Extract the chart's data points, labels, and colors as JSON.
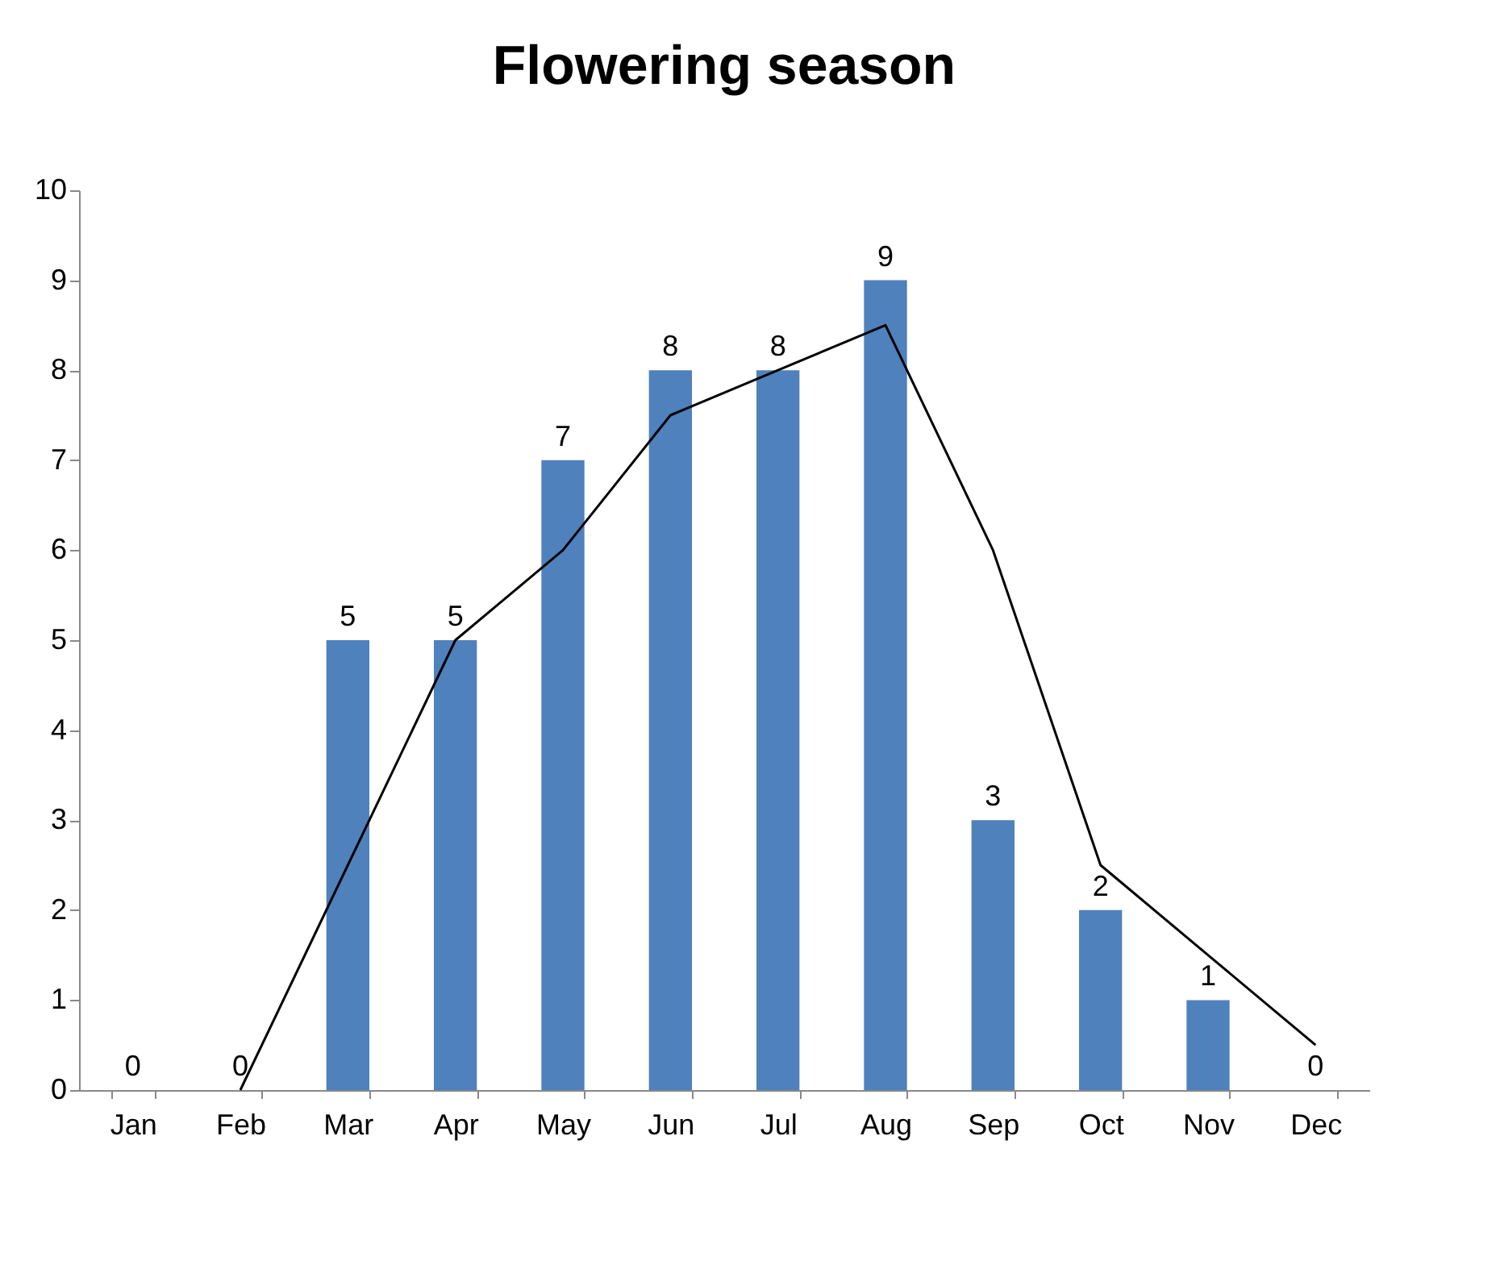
{
  "chart_data": {
    "type": "bar",
    "title": "Flowering season",
    "categories": [
      "Jan",
      "Feb",
      "Mar",
      "Apr",
      "May",
      "Jun",
      "Jul",
      "Aug",
      "Sep",
      "Oct",
      "Nov",
      "Dec"
    ],
    "series": [
      {
        "color": "#4f81bd",
        "values": [
          0,
          0,
          5,
          5,
          7,
          8,
          8,
          9,
          3,
          2,
          1,
          0
        ],
        "value_labels": [
          "0",
          "0",
          "5",
          "5",
          "7",
          "8",
          "8",
          "9",
          "3",
          "2",
          "1",
          "0"
        ]
      },
      {
        "type": "line",
        "color": "#000000",
        "values": [
          null,
          0,
          2.5,
          5,
          6,
          7.5,
          8,
          8.5,
          6,
          2.5,
          1.5,
          0.5
        ]
      }
    ],
    "ylim": [
      0,
      10
    ],
    "yticks": [
      0,
      1,
      2,
      3,
      4,
      5,
      6,
      7,
      8,
      9,
      10
    ],
    "grid": false
  }
}
